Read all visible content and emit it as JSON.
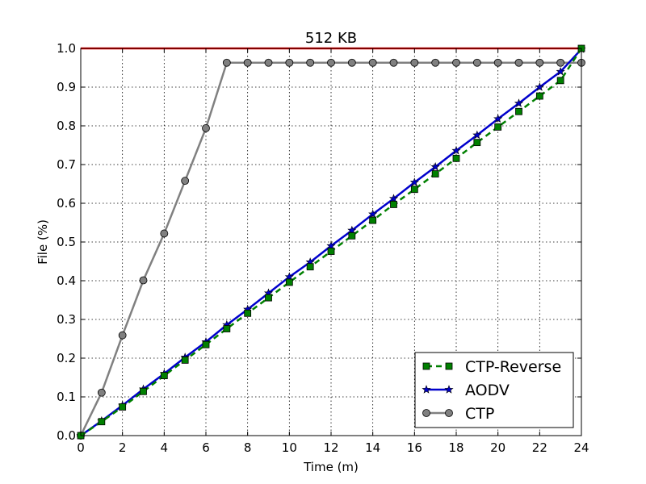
{
  "chart_data": {
    "type": "line",
    "title": "512 KB",
    "xlabel": "Time (m)",
    "ylabel": "File (%)",
    "xlim": [
      0,
      24
    ],
    "ylim": [
      0.0,
      1.0
    ],
    "xticks": [
      "0",
      "2",
      "4",
      "6",
      "8",
      "10",
      "12",
      "14",
      "16",
      "18",
      "20",
      "22",
      "24"
    ],
    "yticks": [
      "0.0",
      "0.1",
      "0.2",
      "0.3",
      "0.4",
      "0.5",
      "0.6",
      "0.7",
      "0.8",
      "0.9",
      "1.0"
    ],
    "grid": true,
    "legend_position": "bottom-right",
    "reference_line": {
      "y": 1.0,
      "color": "#ff0000"
    },
    "series": [
      {
        "name": "CTP-Reverse",
        "color": "#008000",
        "line_style": "dashed",
        "marker": "square",
        "x": [
          0,
          1,
          2,
          3,
          4,
          5,
          6,
          7,
          8,
          9,
          10,
          11,
          12,
          13,
          14,
          15,
          16,
          17,
          18,
          19,
          20,
          21,
          22,
          23,
          24
        ],
        "values": [
          0.0,
          0.036,
          0.074,
          0.114,
          0.155,
          0.195,
          0.235,
          0.276,
          0.316,
          0.356,
          0.396,
          0.436,
          0.476,
          0.516,
          0.556,
          0.597,
          0.636,
          0.676,
          0.716,
          0.757,
          0.797,
          0.837,
          0.877,
          0.917,
          1.0
        ]
      },
      {
        "name": "AODV",
        "color": "#0000cc",
        "line_style": "solid",
        "marker": "star",
        "x": [
          0,
          1,
          2,
          3,
          4,
          5,
          6,
          7,
          8,
          9,
          10,
          11,
          12,
          13,
          14,
          15,
          16,
          17,
          18,
          19,
          20,
          21,
          22,
          23,
          24
        ],
        "values": [
          0.0,
          0.038,
          0.078,
          0.12,
          0.16,
          0.202,
          0.242,
          0.286,
          0.326,
          0.368,
          0.41,
          0.448,
          0.49,
          0.53,
          0.572,
          0.612,
          0.654,
          0.694,
          0.736,
          0.776,
          0.818,
          0.858,
          0.9,
          0.94,
          0.998
        ]
      },
      {
        "name": "CTP",
        "color": "#808080",
        "line_style": "solid",
        "marker": "circle",
        "x": [
          0,
          1,
          2,
          3,
          4,
          5,
          6,
          7,
          8,
          9,
          10,
          11,
          12,
          13,
          14,
          15,
          16,
          17,
          18,
          19,
          20,
          21,
          22,
          23,
          24
        ],
        "values": [
          0.0,
          0.111,
          0.259,
          0.401,
          0.522,
          0.658,
          0.794,
          0.963,
          0.963,
          0.963,
          0.963,
          0.963,
          0.963,
          0.963,
          0.963,
          0.963,
          0.963,
          0.963,
          0.963,
          0.963,
          0.963,
          0.963,
          0.963,
          0.963,
          0.963
        ]
      }
    ]
  }
}
